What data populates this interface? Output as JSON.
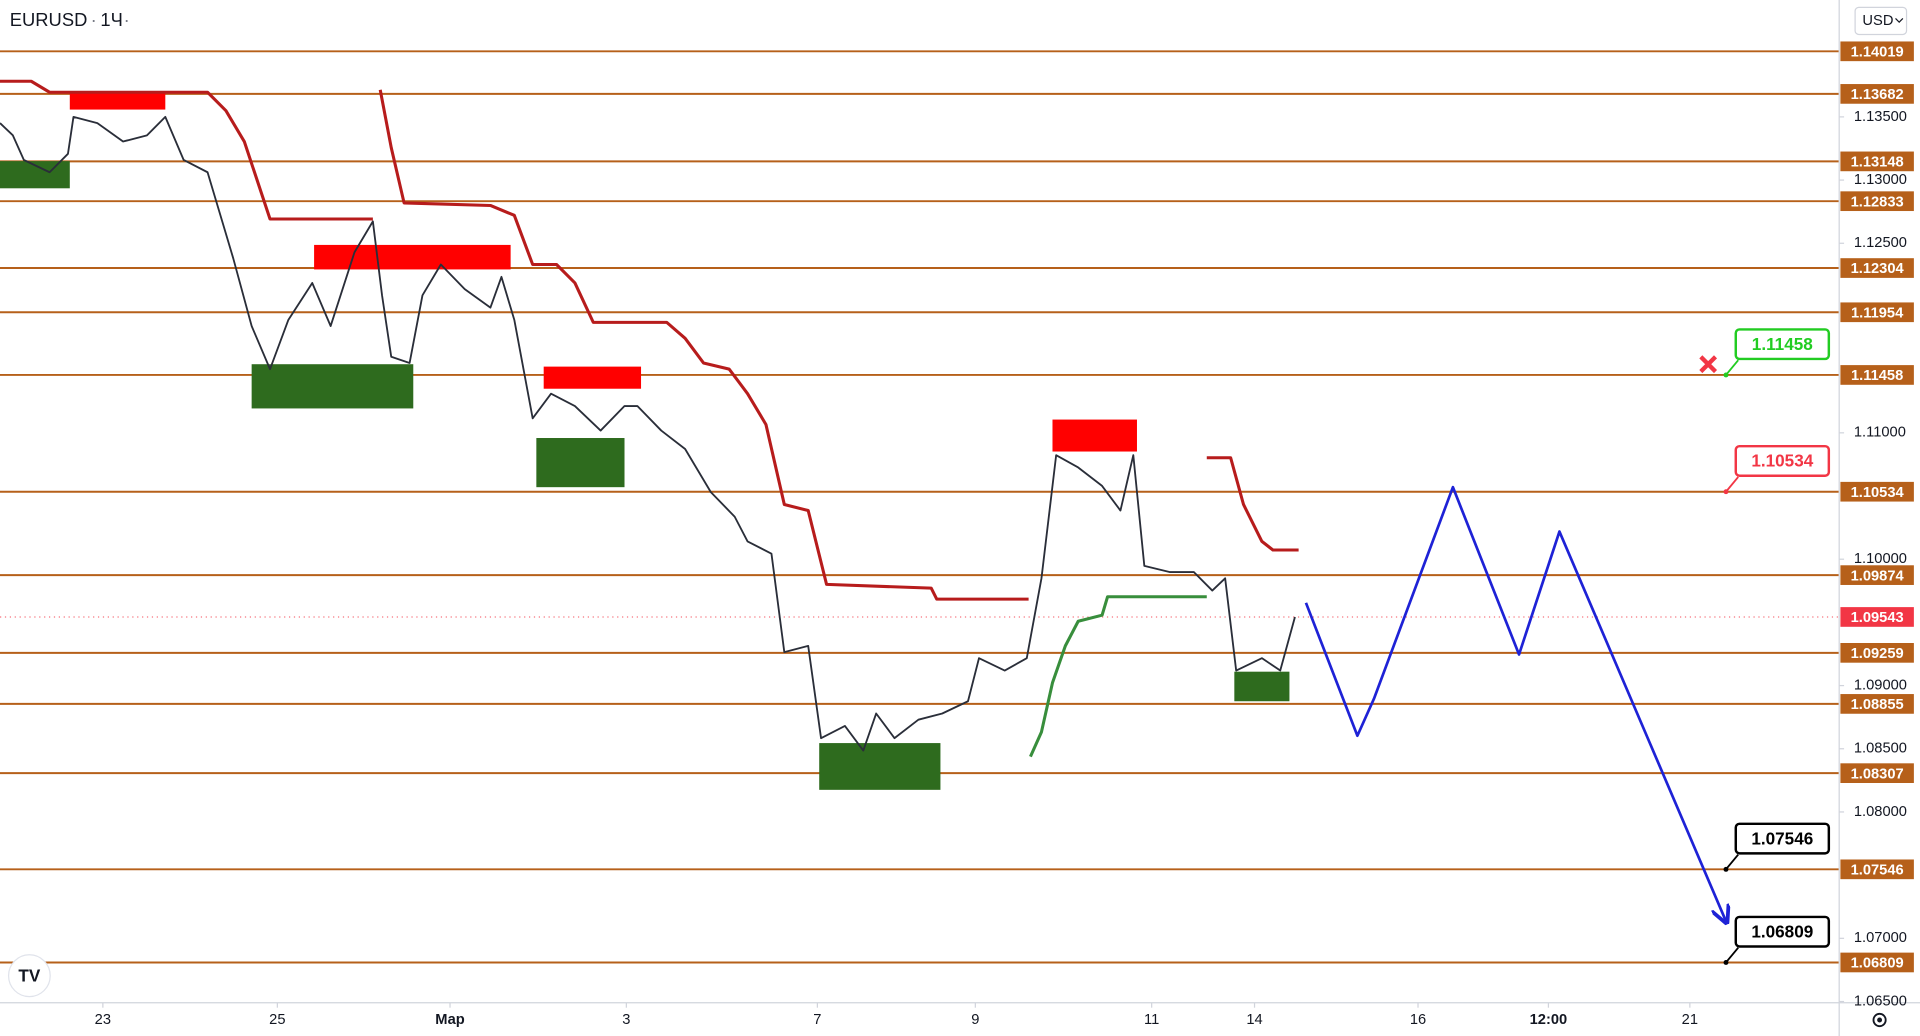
{
  "header": {
    "symbol": "EURUSD",
    "interval": "1Ч",
    "currency": "USD"
  },
  "chart_data": {
    "type": "line",
    "xlim": [
      0,
      100.13
    ],
    "ylim": [
      1.0649,
      1.14425
    ],
    "xticks": [
      {
        "value": 5.6,
        "label": "23"
      },
      {
        "value": 15.1,
        "label": "25"
      },
      {
        "value": 24.5,
        "label": "Мар"
      },
      {
        "value": 34.1,
        "label": "3"
      },
      {
        "value": 44.5,
        "label": "7"
      },
      {
        "value": 53.1,
        "label": "9"
      },
      {
        "value": 62.7,
        "label": "11"
      },
      {
        "value": 68.3,
        "label": "14"
      },
      {
        "value": 77.2,
        "label": "16"
      },
      {
        "value": 84.3,
        "label": "12:00"
      },
      {
        "value": 92,
        "label": "21"
      }
    ],
    "yticks": [
      {
        "value": 1.135,
        "label": "1.13500"
      },
      {
        "value": 1.13,
        "label": "1.13000"
      },
      {
        "value": 1.125,
        "label": "1.12500"
      },
      {
        "value": 1.11,
        "label": "1.11000"
      },
      {
        "value": 1.1,
        "label": "1.10000"
      },
      {
        "value": 1.09,
        "label": "1.09000"
      },
      {
        "value": 1.085,
        "label": "1.08500"
      },
      {
        "value": 1.08,
        "label": "1.08000"
      },
      {
        "value": 1.07,
        "label": "1.07000"
      },
      {
        "value": 1.065,
        "label": "1.06500"
      }
    ],
    "series": [
      {
        "color": "#2a2e39",
        "width": 1.5,
        "x": [
          0,
          0.7,
          1.3,
          2.7,
          3.7,
          4,
          5.3,
          6.7,
          8,
          9,
          10,
          11.3,
          12.3,
          12.7,
          13.7,
          14.7,
          15.7,
          17,
          18,
          19.3,
          20.3,
          20.8,
          21.3,
          22.3,
          23,
          24,
          25.3,
          26.7,
          27.3,
          28,
          29,
          30,
          31.3,
          32.7,
          34,
          34.7,
          36,
          37.3,
          38.7,
          40,
          40.7,
          42,
          42.7,
          44,
          44.7,
          46,
          47,
          47.7,
          48.7,
          50,
          51.3,
          52.7,
          53.3,
          54.7,
          55.9,
          56.7,
          57.5,
          58.7,
          60,
          61,
          61.7,
          62.3,
          63.7,
          65,
          66,
          66.7,
          67.3,
          68.7,
          69.7,
          70.5
        ],
        "values": [
          1.13451,
          1.13354,
          1.13159,
          1.13062,
          1.13208,
          1.135,
          1.13451,
          1.13305,
          1.13354,
          1.135,
          1.13159,
          1.13062,
          1.12575,
          1.1238,
          1.11845,
          1.11504,
          1.11894,
          1.12186,
          1.11845,
          1.12429,
          1.12673,
          1.12088,
          1.11602,
          1.11553,
          1.12088,
          1.12332,
          1.12137,
          1.11991,
          1.12234,
          1.11894,
          1.11115,
          1.1131,
          1.11212,
          1.11018,
          1.11212,
          1.11212,
          1.11018,
          1.10872,
          1.10531,
          1.10336,
          1.10141,
          1.10044,
          1.09265,
          1.09314,
          1.08584,
          1.08681,
          1.08486,
          1.08779,
          1.08584,
          1.0873,
          1.08779,
          1.08876,
          1.09217,
          1.09119,
          1.09217,
          1.09849,
          1.10823,
          1.10726,
          1.1058,
          1.10385,
          1.10823,
          1.09947,
          1.09898,
          1.09898,
          1.09752,
          1.09849,
          1.09119,
          1.09217,
          1.09119,
          1.09543
        ]
      },
      {
        "color": "#b71c1c",
        "width": 2.5,
        "x": [
          0,
          1.7,
          2.7,
          11.3,
          12.3,
          13.3,
          14.3,
          14.7,
          20.3,
          null,
          20.7,
          21.3,
          22,
          26.7,
          28,
          29,
          30.3,
          31.3,
          32.3,
          36.3,
          37.3,
          38.3,
          39.7,
          40.7,
          41.7,
          42.7,
          44,
          45,
          50.7,
          51,
          56,
          null,
          65.7,
          67,
          67.7,
          68.7,
          69.3,
          70.7
        ],
        "values": [
          1.13782,
          1.13782,
          1.13695,
          1.13695,
          1.13549,
          1.13305,
          1.12867,
          1.12692,
          1.12692,
          null,
          1.13714,
          1.13257,
          1.12819,
          1.12799,
          1.12721,
          1.12332,
          1.12332,
          1.12186,
          1.11874,
          1.11874,
          1.11748,
          1.11553,
          1.11504,
          1.1131,
          1.11066,
          1.10433,
          1.10385,
          1.09801,
          1.09771,
          1.09684,
          1.09684,
          null,
          1.10803,
          1.10803,
          1.10433,
          1.10141,
          1.10073,
          1.10073
        ]
      },
      {
        "color": "#388e3c",
        "width": 2.5,
        "x": [
          56.1,
          56.7,
          57.3,
          58,
          58.7,
          60,
          60.3,
          65.7
        ],
        "values": [
          1.08438,
          1.08633,
          1.09022,
          1.09314,
          1.09509,
          1.09557,
          1.09703,
          1.09703
        ]
      },
      {
        "color": "#1e22d6",
        "width": 2.2,
        "arrow": true,
        "x": [
          71.1,
          73.9,
          74.8,
          79.1,
          82.7,
          84.9,
          94
        ],
        "values": [
          1.09655,
          1.08603,
          1.08895,
          1.1057,
          1.09246,
          1.10219,
          1.07124
        ]
      }
    ],
    "levels": {
      "color": "#b6601a",
      "values": [
        1.14019,
        1.13682,
        1.13148,
        1.12833,
        1.12304,
        1.11954,
        1.11458,
        1.10534,
        1.09874,
        1.09259,
        1.08855,
        1.08307,
        1.07546,
        1.06809
      ]
    },
    "current_price": {
      "color": "#f23645",
      "value": 1.09543
    },
    "zones": [
      {
        "color": "#ff0000",
        "x": [
          3.8,
          9
        ],
        "y": [
          1.13558,
          1.13704
        ]
      },
      {
        "color": "#ff0000",
        "x": [
          17.1,
          27.8
        ],
        "y": [
          1.12293,
          1.12487
        ]
      },
      {
        "color": "#ff0000",
        "x": [
          29.6,
          34.9
        ],
        "y": [
          1.11349,
          1.11524
        ]
      },
      {
        "color": "#ff0000",
        "x": [
          57.3,
          61.9
        ],
        "y": [
          1.10852,
          1.11105
        ]
      },
      {
        "color": "#2e6b1e",
        "x": [
          0,
          3.8
        ],
        "y": [
          1.12935,
          1.1315
        ]
      },
      {
        "color": "#2e6b1e",
        "x": [
          13.7,
          22.5
        ],
        "y": [
          1.11193,
          1.11543
        ]
      },
      {
        "color": "#2e6b1e",
        "x": [
          29.2,
          34
        ],
        "y": [
          1.1057,
          1.10959
        ]
      },
      {
        "color": "#2e6b1e",
        "x": [
          44.6,
          51.2
        ],
        "y": [
          1.08175,
          1.08545
        ]
      },
      {
        "color": "#2e6b1e",
        "x": [
          67.2,
          70.2
        ],
        "y": [
          1.08876,
          1.0911
        ]
      }
    ],
    "annotations": [
      {
        "x": 94.5,
        "value": 1.11458,
        "color": "#22cc22"
      },
      {
        "x": 94.5,
        "value": 1.10534,
        "color": "#f23645"
      },
      {
        "x": 94.5,
        "value": 1.07546,
        "color": "#000000"
      },
      {
        "x": 94.5,
        "value": 1.06809,
        "color": "#000000"
      }
    ]
  }
}
